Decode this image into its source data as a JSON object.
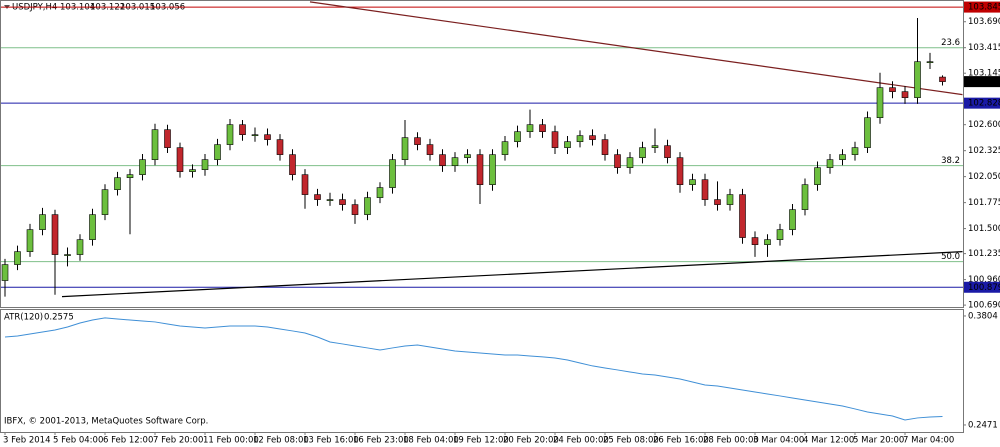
{
  "chart_data": {
    "type": "candlestick",
    "title": "USDJPY,H4",
    "categories": [
      "3 Feb 2014",
      null,
      null,
      null,
      "5 Feb 04:00",
      null,
      null,
      null,
      "6 Feb 12:00",
      null,
      null,
      null,
      "7 Feb 20:00",
      null,
      null,
      null,
      "11 Feb 00:00",
      null,
      null,
      null,
      "12 Feb 08:00",
      null,
      null,
      null,
      "13 Feb 16:00",
      null,
      null,
      null,
      "16 Feb 23:00",
      null,
      null,
      null,
      "18 Feb 04:00",
      null,
      null,
      null,
      "19 Feb 12:00",
      null,
      null,
      null,
      "20 Feb 20:00",
      null,
      null,
      null,
      "24 Feb 00:00",
      null,
      null,
      null,
      "25 Feb 08:00",
      null,
      null,
      null,
      "26 Feb 16:00",
      null,
      null,
      null,
      "28 Feb 00:00",
      null,
      null,
      null,
      "3 Mar 04:00",
      null,
      null,
      null,
      "4 Mar 12:00",
      null,
      null,
      null,
      "5 Mar 20:00",
      null,
      null,
      null,
      "7 Mar 04:00",
      null,
      null,
      null
    ],
    "open": [
      100.95,
      101.119,
      101.256,
      101.489,
      101.648,
      101.225,
      101.225,
      101.383,
      101.648,
      101.912,
      102.039,
      102.071,
      102.23,
      102.547,
      102.357,
      102.103,
      102.124,
      102.23,
      102.389,
      102.6,
      102.494,
      102.494,
      102.442,
      102.283,
      102.071,
      101.86,
      101.807,
      101.807,
      101.754,
      101.648,
      101.828,
      101.934,
      102.23,
      102.463,
      102.389,
      102.283,
      102.166,
      102.251,
      102.283,
      101.965,
      102.283,
      102.42,
      102.526,
      102.6,
      102.526,
      102.357,
      102.42,
      102.484,
      102.442,
      102.283,
      102.145,
      102.251,
      102.357,
      102.378,
      102.251,
      101.965,
      102.018,
      101.807,
      101.754,
      101.86,
      101.405,
      101.33,
      101.383,
      101.489,
      101.701,
      101.965,
      102.145,
      102.23,
      102.283,
      102.357,
      102.674,
      102.992,
      102.95,
      102.886,
      103.267,
      103.104
    ],
    "high": [
      101.18,
      101.32,
      101.55,
      101.72,
      101.7,
      101.3,
      101.44,
      101.71,
      101.97,
      102.1,
      102.13,
      102.29,
      102.61,
      102.6,
      102.41,
      102.18,
      102.29,
      102.45,
      102.66,
      102.65,
      102.57,
      102.56,
      102.5,
      102.34,
      102.13,
      101.92,
      101.88,
      101.87,
      101.81,
      101.89,
      101.99,
      102.29,
      102.65,
      102.52,
      102.45,
      102.34,
      102.31,
      102.34,
      102.34,
      102.34,
      102.48,
      102.59,
      102.76,
      102.66,
      102.59,
      102.48,
      102.54,
      102.55,
      102.5,
      102.34,
      102.31,
      102.42,
      102.56,
      102.44,
      102.31,
      102.08,
      102.08,
      102,
      101.92,
      101.92,
      101.47,
      101.44,
      101.55,
      101.76,
      102.03,
      102.21,
      102.29,
      102.34,
      102.42,
      102.74,
      103.15,
      103.06,
      103.01,
      103.73,
      103.36,
      103.122
    ],
    "low": [
      100.78,
      101.06,
      101.2,
      101.43,
      100.8,
      101.1,
      101.16,
      101.32,
      101.59,
      101.85,
      101.44,
      102.01,
      102.17,
      102.3,
      102.04,
      102.04,
      102.06,
      102.17,
      102.33,
      102.43,
      102.42,
      102.38,
      102.22,
      102.01,
      101.71,
      101.74,
      101.74,
      101.69,
      101.55,
      101.59,
      101.77,
      101.87,
      102.17,
      102.33,
      102.22,
      102.1,
      102.1,
      102.19,
      101.76,
      101.9,
      102.22,
      102.36,
      102.46,
      102.46,
      102.29,
      102.29,
      102.36,
      102.38,
      102.22,
      102.08,
      102.08,
      102.19,
      102.3,
      102.19,
      101.88,
      101.9,
      101.74,
      101.69,
      101.69,
      101.34,
      101.2,
      101.2,
      101.32,
      101.43,
      101.64,
      101.9,
      102.08,
      102.17,
      102.22,
      102.3,
      102.61,
      102.88,
      102.82,
      102.82,
      103.19,
      103.015
    ],
    "close": [
      101.119,
      101.256,
      101.489,
      101.648,
      101.225,
      101.225,
      101.383,
      101.648,
      101.912,
      102.039,
      102.071,
      102.23,
      102.547,
      102.357,
      102.103,
      102.124,
      102.23,
      102.389,
      102.6,
      102.494,
      102.494,
      102.442,
      102.283,
      102.071,
      101.86,
      101.807,
      101.807,
      101.754,
      101.648,
      101.828,
      101.934,
      102.23,
      102.463,
      102.389,
      102.283,
      102.166,
      102.251,
      102.283,
      101.965,
      102.283,
      102.42,
      102.526,
      102.6,
      102.526,
      102.357,
      102.42,
      102.484,
      102.442,
      102.283,
      102.145,
      102.251,
      102.357,
      102.378,
      102.251,
      101.965,
      102.018,
      101.807,
      101.754,
      101.86,
      101.405,
      101.33,
      101.383,
      101.489,
      101.701,
      101.965,
      102.145,
      102.23,
      102.283,
      102.357,
      102.674,
      102.992,
      102.95,
      102.886,
      103.267,
      103.267,
      103.056
    ],
    "up_color": "#6cbf3e",
    "down_color": "#c1272d",
    "ylim": [
      100.67,
      103.92
    ],
    "yticks": [
      {
        "value": 103.69,
        "label": "103.690"
      },
      103.415,
      103.145,
      {
        "value": 102.6,
        "label": "102.600"
      },
      102.325,
      {
        "value": 102.05,
        "label": "102.050"
      },
      101.775,
      {
        "value": 101.5,
        "label": "101.500"
      },
      101.235,
      {
        "value": 100.96,
        "label": "100.960"
      },
      {
        "value": 100.69,
        "label": "100.690"
      }
    ],
    "hlines": [
      {
        "value": 103.845,
        "color": "#c00000"
      },
      {
        "value": 102.828,
        "color": "#1a1aa6"
      },
      {
        "value": 100.879,
        "color": "#1a1aa6"
      }
    ],
    "fib": {
      "color": "#7fbf8a",
      "levels": [
        {
          "value": 103.415,
          "label": "23.6"
        },
        {
          "value": 102.166,
          "label": "38.2"
        },
        {
          "value": 101.151,
          "label": "50.0"
        }
      ]
    },
    "trendlines": [
      {
        "color": "#7b1f1f",
        "points": [
          [
            24.4,
            103.9
          ],
          [
            76.6,
            102.918
          ]
        ]
      },
      {
        "color": "#000000",
        "points": [
          [
            4.56,
            100.78
          ],
          [
            76.6,
            101.256
          ]
        ]
      }
    ],
    "indicator": {
      "name": "ATR(120)",
      "color": "#3f8fd6",
      "ylim": [
        0.2385,
        0.3877
      ],
      "yticks": [
        0.3804,
        0.2471
      ],
      "values": [
        0.3547,
        0.3559,
        0.3584,
        0.3608,
        0.3633,
        0.3669,
        0.3718,
        0.3755,
        0.378,
        0.3767,
        0.3755,
        0.3743,
        0.3731,
        0.3706,
        0.3682,
        0.3669,
        0.3657,
        0.3669,
        0.3682,
        0.3682,
        0.3682,
        0.3669,
        0.3645,
        0.3621,
        0.3596,
        0.3547,
        0.3486,
        0.3462,
        0.3437,
        0.3413,
        0.3388,
        0.3413,
        0.3437,
        0.3449,
        0.3425,
        0.34,
        0.3376,
        0.3364,
        0.3351,
        0.3339,
        0.3327,
        0.3327,
        0.3315,
        0.3303,
        0.329,
        0.3266,
        0.3229,
        0.3193,
        0.3168,
        0.3144,
        0.3119,
        0.3095,
        0.3082,
        0.3058,
        0.3033,
        0.2997,
        0.296,
        0.2948,
        0.2923,
        0.2899,
        0.2874,
        0.285,
        0.2826,
        0.2801,
        0.2777,
        0.2752,
        0.2728,
        0.2703,
        0.2667,
        0.263,
        0.2605,
        0.2581,
        0.2532,
        0.2557,
        0.2569,
        0.2575
      ]
    },
    "copyright": "IBFX, © 2001-2013, MetaQuotes Software Corp."
  }
}
